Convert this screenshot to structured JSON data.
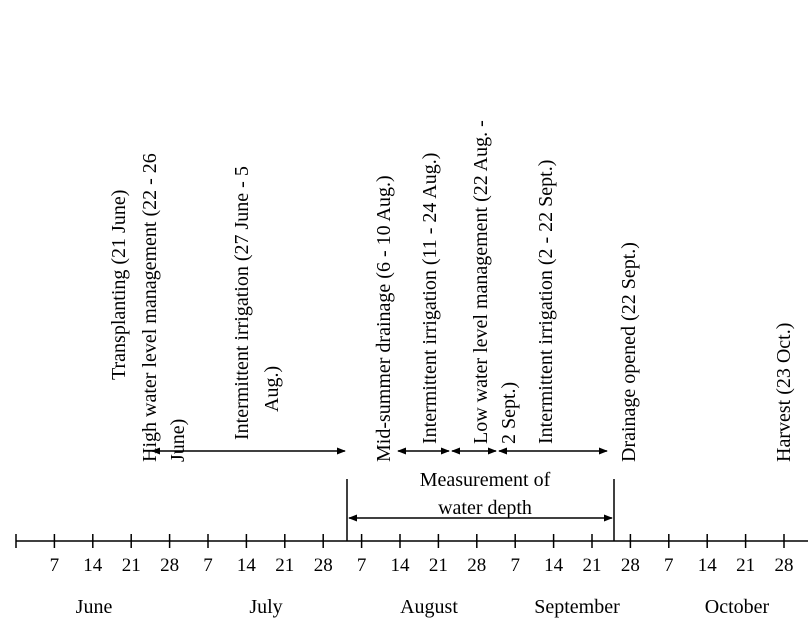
{
  "axis": {
    "tick_labels": [
      "7",
      "14",
      "21",
      "28",
      "7",
      "14",
      "21",
      "28",
      "7",
      "14",
      "21",
      "28",
      "7",
      "14",
      "21",
      "28",
      "7",
      "14",
      "21",
      "28"
    ],
    "months": [
      "June",
      "July",
      "August",
      "September",
      "October"
    ]
  },
  "events": {
    "transplanting": "Transplanting (21 June)",
    "high_water_line1": "High water level management (22 - 26",
    "high_water_line2": "June)",
    "intermittent1_line1": "Intermittent irrigation (27 June - 5",
    "intermittent1_line2": "Aug.)",
    "midsummer": "Mid-summer drainage (6 - 10 Aug.)",
    "intermittent2": "Intermittent irrigation (11 - 24 Aug.)",
    "low_water_line1": "Low water level management (22 Aug. -",
    "low_water_line2": "2 Sept.)",
    "intermittent3_line1": "Intermittent irrigation (2 - 22 Sept.)",
    "drainage": "Drainage opened (22 Sept.)",
    "harvest": "Harvest (23 Oct.)"
  },
  "measurement": {
    "line1": "Measurement of",
    "line2": "water depth"
  }
}
